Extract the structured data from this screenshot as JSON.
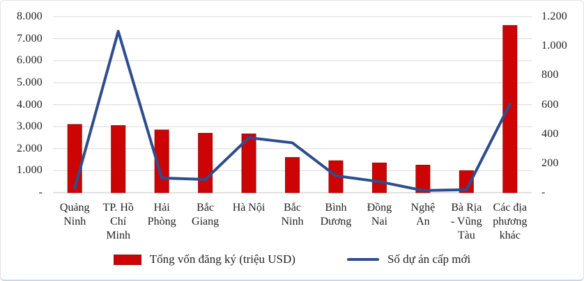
{
  "chart_data": {
    "type": "combo-bar-line",
    "title": "",
    "categories": [
      "Quảng Ninh",
      "TP. Hồ Chí Minh",
      "Hải Phòng",
      "Bắc Giang",
      "Hà Nội",
      "Bắc Ninh",
      "Bình Dương",
      "Đồng Nai",
      "Nghệ An",
      "Bà Rịa - Vũng Tàu",
      "Các địa phương khác"
    ],
    "category_label_lines": [
      [
        "Quảng",
        "Ninh"
      ],
      [
        "TP. Hồ",
        "Chí",
        "Minh"
      ],
      [
        "Hải",
        "Phòng"
      ],
      [
        "Bắc",
        "Giang"
      ],
      [
        "Hà Nội"
      ],
      [
        "Bắc",
        "Ninh"
      ],
      [
        "Bình",
        "Dương"
      ],
      [
        "Đồng",
        "Nai"
      ],
      [
        "Nghệ",
        "An"
      ],
      [
        "Bà Rịa",
        "- Vũng",
        "Tàu"
      ],
      [
        "Các địa",
        "phương",
        "khác"
      ]
    ],
    "series": [
      {
        "name": "Tổng vốn đăng ký (triệu USD)",
        "type": "bar",
        "axis": "left",
        "color": "#cc0404",
        "border_color": "#9a0b0b",
        "values": [
          3100,
          3050,
          2850,
          2700,
          2670,
          1600,
          1450,
          1350,
          1250,
          1000,
          7600
        ]
      },
      {
        "name": "Số dự án cấp mới",
        "type": "line",
        "axis": "right",
        "color": "#2e4d8e",
        "values": [
          30,
          1100,
          100,
          90,
          375,
          340,
          115,
          75,
          15,
          20,
          605
        ]
      }
    ],
    "left_axis": {
      "min": 0,
      "max": 8000,
      "tick_step": 1000,
      "tick_labels": [
        "8.000",
        "7.000",
        "6.000",
        "5.000",
        "4.000",
        "3.000",
        "2.000",
        "1.000",
        "-"
      ]
    },
    "right_axis": {
      "min": 0,
      "max": 1200,
      "tick_step": 200,
      "tick_labels": [
        "1.200",
        "1.000",
        "800",
        "600",
        "400",
        "200",
        "-"
      ]
    },
    "grid": true,
    "legend_position": "bottom",
    "colors": {
      "grid": "#d9d9d9",
      "axis_line": "#c0c0c0",
      "text": "#1f1f1f"
    }
  }
}
